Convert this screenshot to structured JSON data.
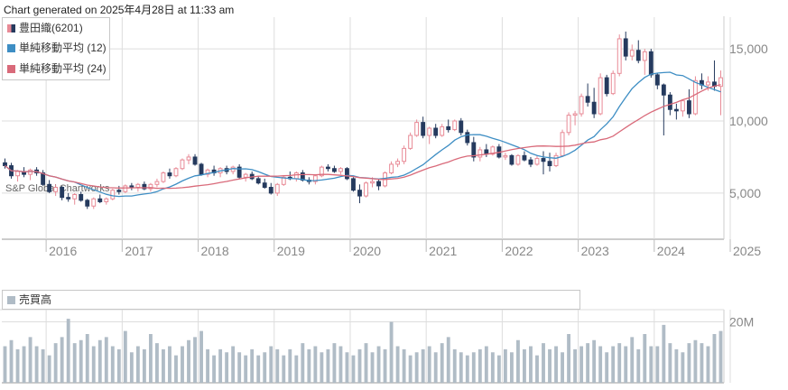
{
  "header": {
    "generated_text": "Chart generated on 2025年4月28日 at 11:33 am"
  },
  "watermark": "S&P Global Chartworks",
  "legend": {
    "items": [
      {
        "label": "豊田織(6201)",
        "color": "#c96a6f"
      },
      {
        "label": "単純移動平均 (12)",
        "color": "#3e8ec4"
      },
      {
        "label": "単純移動平均 (24)",
        "color": "#d96a7a"
      }
    ]
  },
  "volume_legend": {
    "label": "売買高",
    "color": "#b0bcc6"
  },
  "colors": {
    "up": "#e88a96",
    "down": "#253a5e",
    "sma12": "#3e8ec4",
    "sma24": "#d96a7a",
    "volume": "#b0bcc6",
    "grid": "#dddddd"
  },
  "chart_data": [
    {
      "type": "candlestick",
      "title": "豊田織(6201)",
      "x_tick_labels": [
        "2016",
        "2017",
        "2018",
        "2019",
        "2020",
        "2021",
        "2022",
        "2023",
        "2024",
        "2025"
      ],
      "y_tick_labels": [
        "5,000",
        "10,000",
        "15,000"
      ],
      "ylim": [
        1800,
        17200
      ],
      "grid": true,
      "series": [
        {
          "name": "豊田織(6201)",
          "interval": "monthly",
          "ohlc": [
            [
              7100,
              7400,
              6700,
              6900
            ],
            [
              6900,
              7100,
              6000,
              6200
            ],
            [
              6200,
              6600,
              5800,
              6500
            ],
            [
              6500,
              6800,
              6100,
              6300
            ],
            [
              6300,
              6700,
              5900,
              6600
            ],
            [
              6600,
              6800,
              6200,
              6400
            ],
            [
              6400,
              6600,
              5500,
              5600
            ],
            [
              5600,
              5900,
              5000,
              5100
            ],
            [
              5100,
              5600,
              4800,
              5400
            ],
            [
              5400,
              5500,
              4500,
              4700
            ],
            [
              4700,
              5000,
              4400,
              4600
            ],
            [
              4600,
              5000,
              4200,
              4900
            ],
            [
              4900,
              5100,
              4400,
              4500
            ],
            [
              4500,
              4600,
              3900,
              4100
            ],
            [
              4100,
              4700,
              3900,
              4600
            ],
            [
              4600,
              4900,
              4300,
              4400
            ],
            [
              4400,
              4700,
              4200,
              4600
            ],
            [
              4600,
              5300,
              4500,
              5200
            ],
            [
              5200,
              5500,
              4900,
              5100
            ],
            [
              5100,
              5600,
              5000,
              5500
            ],
            [
              5500,
              5700,
              5200,
              5400
            ],
            [
              5400,
              5700,
              5100,
              5600
            ],
            [
              5600,
              5800,
              5200,
              5300
            ],
            [
              5300,
              5700,
              5100,
              5600
            ],
            [
              5600,
              6000,
              5400,
              5800
            ],
            [
              5800,
              6500,
              5700,
              6400
            ],
            [
              6400,
              6700,
              6000,
              6200
            ],
            [
              6200,
              6800,
              6100,
              6700
            ],
            [
              6700,
              7400,
              6600,
              7300
            ],
            [
              7300,
              7700,
              7000,
              7500
            ],
            [
              7500,
              7700,
              6900,
              7000
            ],
            [
              7000,
              7100,
              6200,
              6300
            ],
            [
              6300,
              6700,
              6100,
              6600
            ],
            [
              6600,
              6900,
              6200,
              6400
            ],
            [
              6400,
              6800,
              6100,
              6700
            ],
            [
              6700,
              6900,
              6300,
              6500
            ],
            [
              6500,
              6900,
              6300,
              6800
            ],
            [
              6800,
              7000,
              6000,
              6100
            ],
            [
              6100,
              6400,
              5800,
              6300
            ],
            [
              6300,
              6500,
              5900,
              6000
            ],
            [
              6000,
              6200,
              5600,
              5700
            ],
            [
              5700,
              6000,
              5300,
              5400
            ],
            [
              5400,
              5700,
              4900,
              5000
            ],
            [
              5000,
              5700,
              4800,
              5600
            ],
            [
              5600,
              6200,
              5500,
              6100
            ],
            [
              6100,
              6500,
              5900,
              6000
            ],
            [
              6000,
              6500,
              5800,
              6400
            ],
            [
              6400,
              6600,
              5800,
              5900
            ],
            [
              5900,
              6100,
              5600,
              5800
            ],
            [
              5800,
              6300,
              5600,
              6200
            ],
            [
              6200,
              6900,
              6100,
              6800
            ],
            [
              6800,
              7000,
              6500,
              6700
            ],
            [
              6700,
              6900,
              6400,
              6500
            ],
            [
              6500,
              6800,
              6300,
              6700
            ],
            [
              6700,
              6800,
              5900,
              6000
            ],
            [
              6000,
              6100,
              5100,
              5200
            ],
            [
              5200,
              5600,
              4300,
              4800
            ],
            [
              4800,
              5800,
              4700,
              5700
            ],
            [
              5700,
              6100,
              5400,
              5800
            ],
            [
              5800,
              6000,
              5200,
              5500
            ],
            [
              5500,
              6500,
              5400,
              6400
            ],
            [
              6400,
              7200,
              6300,
              7000
            ],
            [
              7000,
              7400,
              6800,
              7200
            ],
            [
              7200,
              8300,
              7000,
              8100
            ],
            [
              8100,
              9200,
              8000,
              9000
            ],
            [
              9000,
              10100,
              8900,
              9900
            ],
            [
              9900,
              10300,
              8800,
              9000
            ],
            [
              9000,
              9600,
              8400,
              9500
            ],
            [
              9500,
              9800,
              8800,
              9000
            ],
            [
              9000,
              9800,
              8900,
              9600
            ],
            [
              9600,
              10100,
              9200,
              9400
            ],
            [
              9400,
              10100,
              9300,
              10000
            ],
            [
              10000,
              10200,
              9000,
              9200
            ],
            [
              9200,
              9400,
              8300,
              8500
            ],
            [
              8500,
              8900,
              7200,
              7500
            ],
            [
              7500,
              8200,
              7200,
              8000
            ],
            [
              8000,
              8400,
              7500,
              7700
            ],
            [
              7700,
              8300,
              7600,
              8200
            ],
            [
              8200,
              8400,
              7400,
              7500
            ],
            [
              7500,
              7800,
              7300,
              7600
            ],
            [
              7600,
              7700,
              6900,
              7000
            ],
            [
              7000,
              7700,
              6900,
              7600
            ],
            [
              7600,
              7900,
              7200,
              7300
            ],
            [
              7300,
              7500,
              6800,
              7000
            ],
            [
              7000,
              7600,
              6900,
              7400
            ],
            [
              7400,
              7900,
              6300,
              7200
            ],
            [
              7200,
              7800,
              6500,
              6900
            ],
            [
              6900,
              7800,
              6800,
              7600
            ],
            [
              7600,
              9400,
              7500,
              9200
            ],
            [
              9200,
              10600,
              9000,
              10400
            ],
            [
              10400,
              10700,
              9700,
              10500
            ],
            [
              10500,
              11900,
              10300,
              11700
            ],
            [
              11700,
              12600,
              11000,
              11300
            ],
            [
              11300,
              12300,
              10200,
              10500
            ],
            [
              10500,
              13300,
              10400,
              13000
            ],
            [
              13000,
              13200,
              11700,
              11900
            ],
            [
              11900,
              13500,
              11800,
              13300
            ],
            [
              13300,
              16000,
              13100,
              15700
            ],
            [
              15700,
              16200,
              14200,
              14500
            ],
            [
              14500,
              15300,
              14200,
              14900
            ],
            [
              14900,
              15600,
              14000,
              14200
            ],
            [
              14200,
              15000,
              13200,
              14800
            ],
            [
              14800,
              15000,
              13000,
              13200
            ],
            [
              13200,
              13300,
              12200,
              12500
            ],
            [
              12500,
              12600,
              9000,
              11800
            ],
            [
              11800,
              12000,
              10400,
              10800
            ],
            [
              10800,
              11200,
              10100,
              10700
            ],
            [
              10700,
              11500,
              10300,
              11400
            ],
            [
              11400,
              12200,
              10200,
              10500
            ],
            [
              10500,
              13100,
              10400,
              12800
            ],
            [
              12800,
              13300,
              12200,
              12500
            ],
            [
              12500,
              13100,
              12100,
              12700
            ],
            [
              12700,
              14200,
              12100,
              12400
            ],
            [
              12400,
              13500,
              10400,
              13000
            ]
          ]
        },
        {
          "name": "単純移動平均 (12)",
          "role": "sma",
          "period": 12
        },
        {
          "name": "単純移動平均 (24)",
          "role": "sma",
          "period": 24
        }
      ]
    },
    {
      "type": "bar",
      "title": "売買高",
      "y_tick_labels": [
        "20M"
      ],
      "ylim": [
        0,
        24
      ],
      "unit": "M",
      "series": [
        {
          "name": "売買高",
          "values": [
            12,
            14,
            11,
            12,
            15,
            12,
            11,
            9,
            13,
            15,
            21,
            13,
            14,
            16,
            12,
            14,
            15,
            12,
            11,
            17,
            10,
            12,
            11,
            16,
            13,
            11,
            12,
            9,
            12,
            14,
            15,
            17,
            11,
            9,
            11,
            10,
            12,
            10,
            9,
            11,
            9,
            10,
            12,
            11,
            9,
            11,
            9,
            13,
            11,
            12,
            10,
            11,
            13,
            12,
            10,
            9,
            11,
            13,
            10,
            12,
            11,
            20,
            12,
            11,
            9,
            10,
            11,
            12,
            10,
            13,
            15,
            11,
            10,
            9,
            10,
            11,
            12,
            10,
            9,
            11,
            10,
            14,
            11,
            12,
            9,
            13,
            11,
            12,
            10,
            16,
            11,
            12,
            13,
            14,
            12,
            10,
            12,
            13,
            12,
            15,
            11,
            16,
            12,
            12,
            19,
            13,
            11,
            10,
            13,
            14,
            13,
            12,
            16,
            17
          ]
        }
      ]
    }
  ]
}
